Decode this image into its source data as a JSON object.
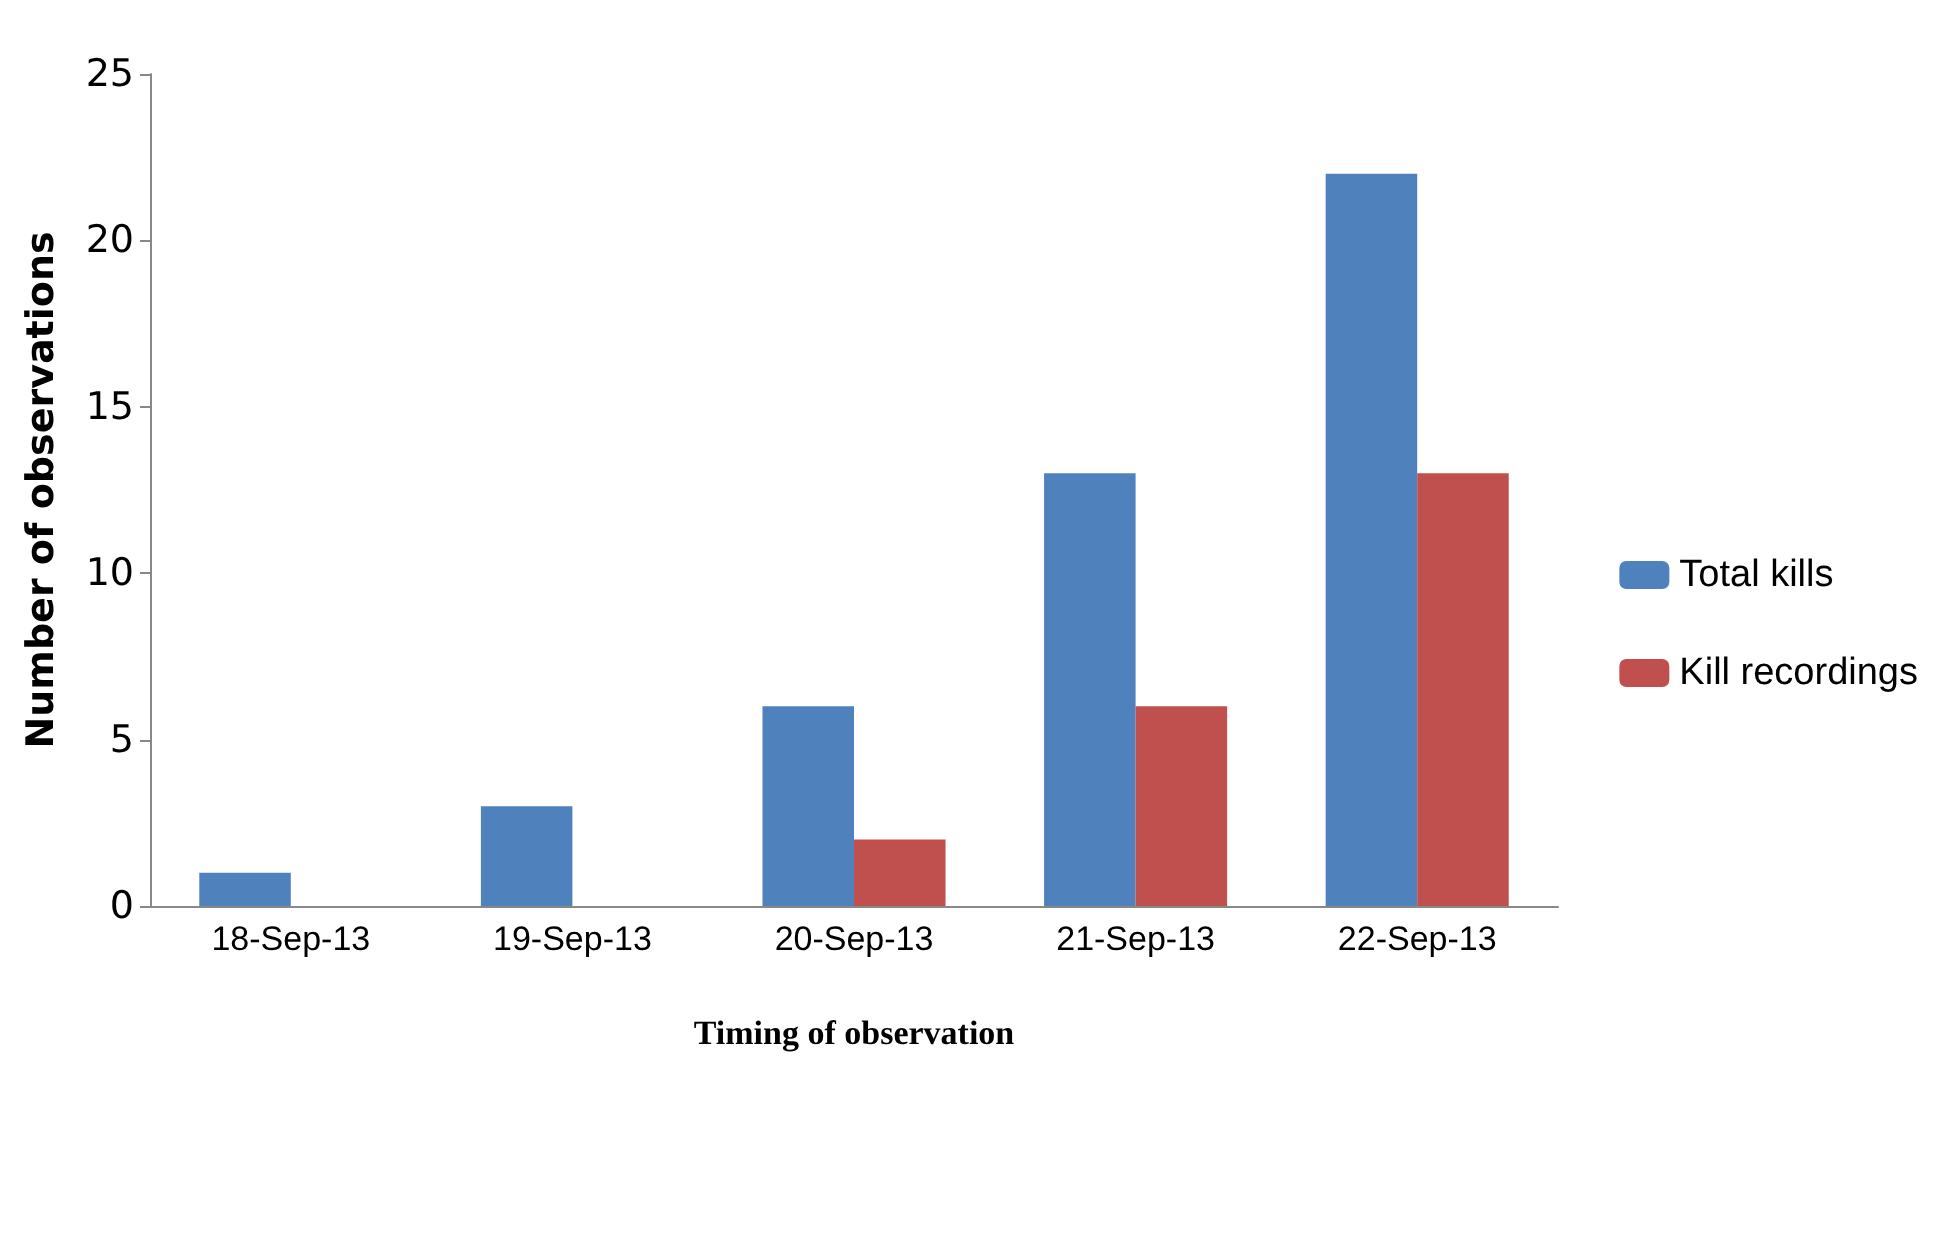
{
  "chart_data": {
    "type": "bar",
    "xlabel": "Timing of observation",
    "ylabel": "Number of observations",
    "categories": [
      "18-Sep-13",
      "19-Sep-13",
      "20-Sep-13",
      "21-Sep-13",
      "22-Sep-13"
    ],
    "series": [
      {
        "name": "Total kills",
        "color": "#4f81bd",
        "values": [
          1,
          3,
          6,
          13,
          22
        ]
      },
      {
        "name": "Kill recordings",
        "color": "#c0504d",
        "values": [
          0,
          0,
          2,
          6,
          13
        ]
      }
    ],
    "ylim": [
      0,
      25
    ],
    "yticks": [
      0,
      5,
      10,
      15,
      20,
      25
    ],
    "grid": false,
    "legend": "right"
  }
}
